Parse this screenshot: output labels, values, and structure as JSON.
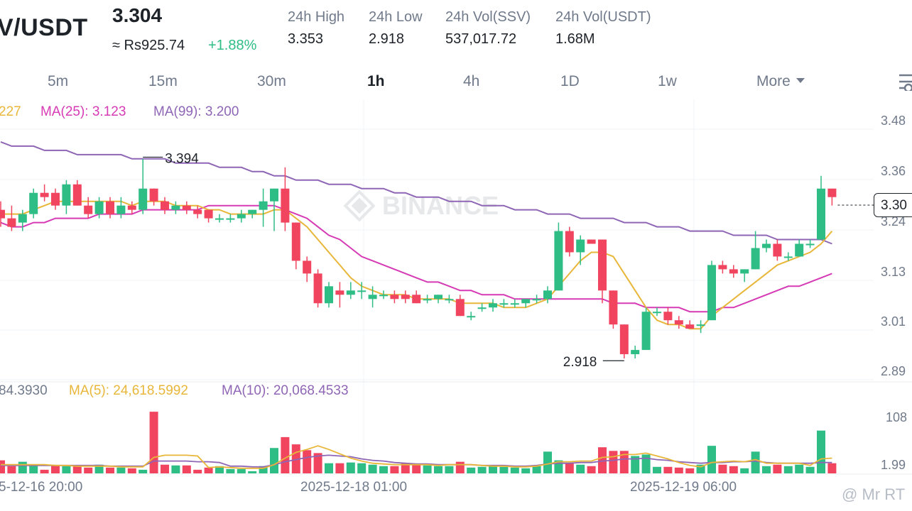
{
  "header": {
    "pair": "V/USDT",
    "price": "3.304",
    "fiat_price": "≈ Rs925.74",
    "change": "+1.88%",
    "stats": [
      {
        "label": "24h High",
        "value": "3.353"
      },
      {
        "label": "24h Low",
        "value": "2.918"
      },
      {
        "label": "24h Vol(SSV)",
        "value": "537,017.72"
      },
      {
        "label": "24h Vol(USDT)",
        "value": "1.68M"
      }
    ]
  },
  "tabs": [
    {
      "label": "5m",
      "active": false
    },
    {
      "label": "15m",
      "active": false
    },
    {
      "label": "30m",
      "active": false
    },
    {
      "label": "1h",
      "active": true
    },
    {
      "label": "4h",
      "active": false
    },
    {
      "label": "1D",
      "active": false
    },
    {
      "label": "1w",
      "active": false
    },
    {
      "label": "More",
      "active": false
    }
  ],
  "price_chart": {
    "ma_labels": [
      {
        "text": "227",
        "color": "#e8b73a"
      },
      {
        "text": "MA(25): 3.123",
        "color": "#d63ab4"
      },
      {
        "text": "MA(99): 3.200",
        "color": "#8e66b5"
      }
    ],
    "y_ticks": [
      "3.48",
      "3.36",
      "3.24",
      "3.13",
      "3.01",
      "2.89"
    ],
    "high_marker": "3.394",
    "low_marker": "2.918",
    "last_price_tag": "3.30",
    "watermark": "BINANCE"
  },
  "volume_chart": {
    "labels": [
      {
        "text": "84.3930",
        "color": "#707a8a"
      },
      {
        "text": "MA(5): 24,618.5992",
        "color": "#e8b73a"
      },
      {
        "text": "MA(10): 20,068.4533",
        "color": "#8e66b5"
      }
    ],
    "y_ticks": [
      "108",
      "1.99"
    ]
  },
  "time_axis": [
    "5-12-16 20:00",
    "2025-12-18 01:00",
    "2025-12-19 06:00"
  ],
  "attribution": "@ Mr RT",
  "colors": {
    "up": "#2ebd85",
    "down": "#f0445f",
    "ma7": "#e8b73a",
    "ma25": "#d63ab4",
    "ma99": "#8e66b5"
  },
  "chart_data": {
    "type": "candlestick",
    "candles": [
      {
        "o": 3.27,
        "h": 3.29,
        "l": 3.23,
        "c": 3.25
      },
      {
        "o": 3.25,
        "h": 3.28,
        "l": 3.22,
        "c": 3.23
      },
      {
        "o": 3.24,
        "h": 3.27,
        "l": 3.22,
        "c": 3.26
      },
      {
        "o": 3.26,
        "h": 3.32,
        "l": 3.25,
        "c": 3.31
      },
      {
        "o": 3.31,
        "h": 3.33,
        "l": 3.29,
        "c": 3.3
      },
      {
        "o": 3.31,
        "h": 3.32,
        "l": 3.27,
        "c": 3.28
      },
      {
        "o": 3.28,
        "h": 3.34,
        "l": 3.26,
        "c": 3.33
      },
      {
        "o": 3.33,
        "h": 3.34,
        "l": 3.28,
        "c": 3.28
      },
      {
        "o": 3.28,
        "h": 3.3,
        "l": 3.25,
        "c": 3.26
      },
      {
        "o": 3.26,
        "h": 3.3,
        "l": 3.25,
        "c": 3.29
      },
      {
        "o": 3.29,
        "h": 3.3,
        "l": 3.25,
        "c": 3.26
      },
      {
        "o": 3.26,
        "h": 3.3,
        "l": 3.25,
        "c": 3.28
      },
      {
        "o": 3.28,
        "h": 3.29,
        "l": 3.26,
        "c": 3.27
      },
      {
        "o": 3.27,
        "h": 3.39,
        "l": 3.26,
        "c": 3.32
      },
      {
        "o": 3.32,
        "h": 3.32,
        "l": 3.28,
        "c": 3.29
      },
      {
        "o": 3.29,
        "h": 3.3,
        "l": 3.26,
        "c": 3.27
      },
      {
        "o": 3.27,
        "h": 3.29,
        "l": 3.26,
        "c": 3.28
      },
      {
        "o": 3.28,
        "h": 3.29,
        "l": 3.26,
        "c": 3.27
      },
      {
        "o": 3.27,
        "h": 3.28,
        "l": 3.25,
        "c": 3.26
      },
      {
        "o": 3.27,
        "h": 3.27,
        "l": 3.24,
        "c": 3.25
      },
      {
        "o": 3.25,
        "h": 3.26,
        "l": 3.24,
        "c": 3.25
      },
      {
        "o": 3.25,
        "h": 3.26,
        "l": 3.24,
        "c": 3.25
      },
      {
        "o": 3.25,
        "h": 3.27,
        "l": 3.24,
        "c": 3.26
      },
      {
        "o": 3.26,
        "h": 3.27,
        "l": 3.25,
        "c": 3.27
      },
      {
        "o": 3.27,
        "h": 3.32,
        "l": 3.23,
        "c": 3.29
      },
      {
        "o": 3.29,
        "h": 3.32,
        "l": 3.22,
        "c": 3.32
      },
      {
        "o": 3.32,
        "h": 3.37,
        "l": 3.22,
        "c": 3.24
      },
      {
        "o": 3.24,
        "h": 3.24,
        "l": 3.13,
        "c": 3.15
      },
      {
        "o": 3.15,
        "h": 3.16,
        "l": 3.1,
        "c": 3.12
      },
      {
        "o": 3.12,
        "h": 3.13,
        "l": 3.04,
        "c": 3.05
      },
      {
        "o": 3.05,
        "h": 3.1,
        "l": 3.04,
        "c": 3.09
      },
      {
        "o": 3.08,
        "h": 3.1,
        "l": 3.04,
        "c": 3.07
      },
      {
        "o": 3.07,
        "h": 3.1,
        "l": 3.06,
        "c": 3.08
      },
      {
        "o": 3.08,
        "h": 3.1,
        "l": 3.06,
        "c": 3.08
      },
      {
        "o": 3.06,
        "h": 3.09,
        "l": 3.04,
        "c": 3.07
      },
      {
        "o": 3.07,
        "h": 3.08,
        "l": 3.06,
        "c": 3.07
      },
      {
        "o": 3.07,
        "h": 3.08,
        "l": 3.05,
        "c": 3.06
      },
      {
        "o": 3.07,
        "h": 3.08,
        "l": 3.05,
        "c": 3.06
      },
      {
        "o": 3.07,
        "h": 3.08,
        "l": 3.05,
        "c": 3.05
      },
      {
        "o": 3.06,
        "h": 3.07,
        "l": 3.05,
        "c": 3.06
      },
      {
        "o": 3.06,
        "h": 3.07,
        "l": 3.05,
        "c": 3.07
      },
      {
        "o": 3.06,
        "h": 3.07,
        "l": 3.05,
        "c": 3.06
      },
      {
        "o": 3.06,
        "h": 3.07,
        "l": 3.02,
        "c": 3.02
      },
      {
        "o": 3.02,
        "h": 3.03,
        "l": 3.01,
        "c": 3.02
      },
      {
        "o": 3.04,
        "h": 3.05,
        "l": 3.03,
        "c": 3.04
      },
      {
        "o": 3.04,
        "h": 3.06,
        "l": 3.03,
        "c": 3.05
      },
      {
        "o": 3.05,
        "h": 3.06,
        "l": 3.04,
        "c": 3.05
      },
      {
        "o": 3.05,
        "h": 3.06,
        "l": 3.04,
        "c": 3.05
      },
      {
        "o": 3.05,
        "h": 3.06,
        "l": 3.04,
        "c": 3.06
      },
      {
        "o": 3.06,
        "h": 3.07,
        "l": 3.05,
        "c": 3.06
      },
      {
        "o": 3.06,
        "h": 3.09,
        "l": 3.05,
        "c": 3.08
      },
      {
        "o": 3.08,
        "h": 3.24,
        "l": 3.08,
        "c": 3.22
      },
      {
        "o": 3.22,
        "h": 3.23,
        "l": 3.16,
        "c": 3.17
      },
      {
        "o": 3.17,
        "h": 3.21,
        "l": 3.14,
        "c": 3.2
      },
      {
        "o": 3.2,
        "h": 3.2,
        "l": 3.19,
        "c": 3.19
      },
      {
        "o": 3.2,
        "h": 3.2,
        "l": 3.05,
        "c": 3.08
      },
      {
        "o": 3.08,
        "h": 3.08,
        "l": 2.99,
        "c": 3.0
      },
      {
        "o": 3.0,
        "h": 3.0,
        "l": 2.92,
        "c": 2.93
      },
      {
        "o": 2.93,
        "h": 2.95,
        "l": 2.92,
        "c": 2.94
      },
      {
        "o": 2.94,
        "h": 3.04,
        "l": 2.94,
        "c": 3.03
      },
      {
        "o": 3.03,
        "h": 3.04,
        "l": 3.02,
        "c": 3.03
      },
      {
        "o": 3.03,
        "h": 3.04,
        "l": 3.0,
        "c": 3.01
      },
      {
        "o": 3.01,
        "h": 3.02,
        "l": 2.99,
        "c": 3.0
      },
      {
        "o": 3.0,
        "h": 3.01,
        "l": 2.99,
        "c": 2.99
      },
      {
        "o": 3.0,
        "h": 3.01,
        "l": 2.98,
        "c": 3.0
      },
      {
        "o": 3.01,
        "h": 3.15,
        "l": 3.01,
        "c": 3.14
      },
      {
        "o": 3.14,
        "h": 3.15,
        "l": 3.12,
        "c": 3.13
      },
      {
        "o": 3.13,
        "h": 3.14,
        "l": 3.11,
        "c": 3.12
      },
      {
        "o": 3.12,
        "h": 3.13,
        "l": 3.1,
        "c": 3.13
      },
      {
        "o": 3.13,
        "h": 3.22,
        "l": 3.13,
        "c": 3.18
      },
      {
        "o": 3.18,
        "h": 3.2,
        "l": 3.17,
        "c": 3.19
      },
      {
        "o": 3.19,
        "h": 3.2,
        "l": 3.15,
        "c": 3.16
      },
      {
        "o": 3.16,
        "h": 3.17,
        "l": 3.15,
        "c": 3.16
      },
      {
        "o": 3.16,
        "h": 3.2,
        "l": 3.16,
        "c": 3.19
      },
      {
        "o": 3.19,
        "h": 3.2,
        "l": 3.18,
        "c": 3.19
      },
      {
        "o": 3.2,
        "h": 3.35,
        "l": 3.2,
        "c": 3.32
      },
      {
        "o": 3.32,
        "h": 3.32,
        "l": 3.28,
        "c": 3.3
      }
    ],
    "ma7": [
      3.26,
      3.26,
      3.26,
      3.27,
      3.28,
      3.29,
      3.29,
      3.29,
      3.29,
      3.29,
      3.29,
      3.29,
      3.28,
      3.29,
      3.29,
      3.29,
      3.28,
      3.28,
      3.28,
      3.27,
      3.27,
      3.26,
      3.26,
      3.26,
      3.26,
      3.27,
      3.27,
      3.25,
      3.23,
      3.2,
      3.17,
      3.14,
      3.11,
      3.09,
      3.08,
      3.07,
      3.07,
      3.07,
      3.06,
      3.06,
      3.06,
      3.06,
      3.05,
      3.05,
      3.05,
      3.05,
      3.04,
      3.04,
      3.04,
      3.05,
      3.06,
      3.09,
      3.12,
      3.15,
      3.17,
      3.17,
      3.16,
      3.12,
      3.08,
      3.04,
      3.01,
      3.0,
      3.0,
      2.99,
      2.99,
      3.02,
      3.04,
      3.06,
      3.08,
      3.1,
      3.12,
      3.14,
      3.15,
      3.16,
      3.17,
      3.19,
      3.22
    ],
    "ma25": [
      3.24,
      3.23,
      3.23,
      3.24,
      3.24,
      3.25,
      3.25,
      3.25,
      3.25,
      3.26,
      3.26,
      3.26,
      3.26,
      3.27,
      3.27,
      3.27,
      3.27,
      3.27,
      3.27,
      3.28,
      3.28,
      3.28,
      3.28,
      3.28,
      3.28,
      3.28,
      3.27,
      3.26,
      3.25,
      3.23,
      3.21,
      3.2,
      3.18,
      3.16,
      3.15,
      3.14,
      3.13,
      3.12,
      3.11,
      3.1,
      3.1,
      3.09,
      3.08,
      3.08,
      3.07,
      3.07,
      3.07,
      3.06,
      3.06,
      3.06,
      3.06,
      3.06,
      3.06,
      3.06,
      3.06,
      3.06,
      3.05,
      3.05,
      3.05,
      3.04,
      3.04,
      3.04,
      3.04,
      3.03,
      3.03,
      3.03,
      3.04,
      3.04,
      3.05,
      3.06,
      3.07,
      3.08,
      3.09,
      3.09,
      3.1,
      3.11,
      3.12
    ],
    "ma99": [
      3.43,
      3.42,
      3.42,
      3.42,
      3.41,
      3.41,
      3.41,
      3.4,
      3.4,
      3.4,
      3.4,
      3.4,
      3.39,
      3.39,
      3.39,
      3.39,
      3.38,
      3.38,
      3.38,
      3.38,
      3.37,
      3.37,
      3.37,
      3.36,
      3.36,
      3.35,
      3.35,
      3.34,
      3.34,
      3.34,
      3.33,
      3.33,
      3.33,
      3.32,
      3.32,
      3.32,
      3.31,
      3.31,
      3.3,
      3.3,
      3.3,
      3.29,
      3.29,
      3.29,
      3.28,
      3.28,
      3.28,
      3.27,
      3.27,
      3.27,
      3.26,
      3.26,
      3.26,
      3.25,
      3.25,
      3.25,
      3.25,
      3.24,
      3.24,
      3.24,
      3.23,
      3.23,
      3.23,
      3.22,
      3.22,
      3.22,
      3.22,
      3.21,
      3.21,
      3.21,
      3.21,
      3.2,
      3.2,
      3.2,
      3.2,
      3.2,
      3.19
    ],
    "volume": [
      18,
      10,
      16,
      12,
      5,
      11,
      10,
      10,
      8,
      12,
      8,
      8,
      7,
      5,
      85,
      12,
      11,
      11,
      5,
      8,
      10,
      6,
      6,
      3,
      10,
      35,
      50,
      40,
      32,
      28,
      14,
      14,
      15,
      14,
      12,
      10,
      10,
      14,
      12,
      11,
      10,
      10,
      16,
      8,
      9,
      10,
      9,
      8,
      7,
      10,
      30,
      18,
      14,
      12,
      10,
      36,
      31,
      31,
      24,
      26,
      9,
      9,
      8,
      7,
      12,
      38,
      12,
      10,
      7,
      30,
      10,
      12,
      10,
      12,
      9,
      59,
      14
    ],
    "vol_ma5": [
      12,
      12,
      12,
      12,
      12,
      11,
      11,
      10,
      10,
      10,
      10,
      9,
      9,
      9,
      22,
      25,
      25,
      25,
      24,
      8,
      9,
      8,
      7,
      7,
      7,
      12,
      21,
      29,
      33,
      38,
      33,
      27,
      21,
      17,
      14,
      13,
      12,
      12,
      12,
      12,
      11,
      12,
      12,
      12,
      11,
      10,
      10,
      9,
      9,
      10,
      13,
      16,
      16,
      17,
      17,
      22,
      23,
      26,
      26,
      28,
      24,
      20,
      15,
      11,
      9,
      15,
      16,
      17,
      16,
      19,
      14,
      14,
      14,
      14,
      11,
      20,
      21
    ],
    "vol_ma10": [
      11,
      11,
      11,
      11,
      11,
      11,
      11,
      11,
      11,
      11,
      10,
      10,
      10,
      10,
      17,
      17,
      17,
      17,
      16,
      16,
      15,
      10,
      10,
      9,
      9,
      12,
      16,
      19,
      22,
      24,
      25,
      24,
      23,
      20,
      18,
      17,
      15,
      14,
      13,
      13,
      12,
      12,
      12,
      12,
      11,
      11,
      11,
      10,
      10,
      11,
      13,
      14,
      14,
      15,
      15,
      17,
      18,
      20,
      20,
      21,
      19,
      18,
      16,
      15,
      14,
      15,
      15,
      16,
      16,
      17,
      15,
      14,
      14,
      14,
      14,
      15,
      15
    ]
  }
}
